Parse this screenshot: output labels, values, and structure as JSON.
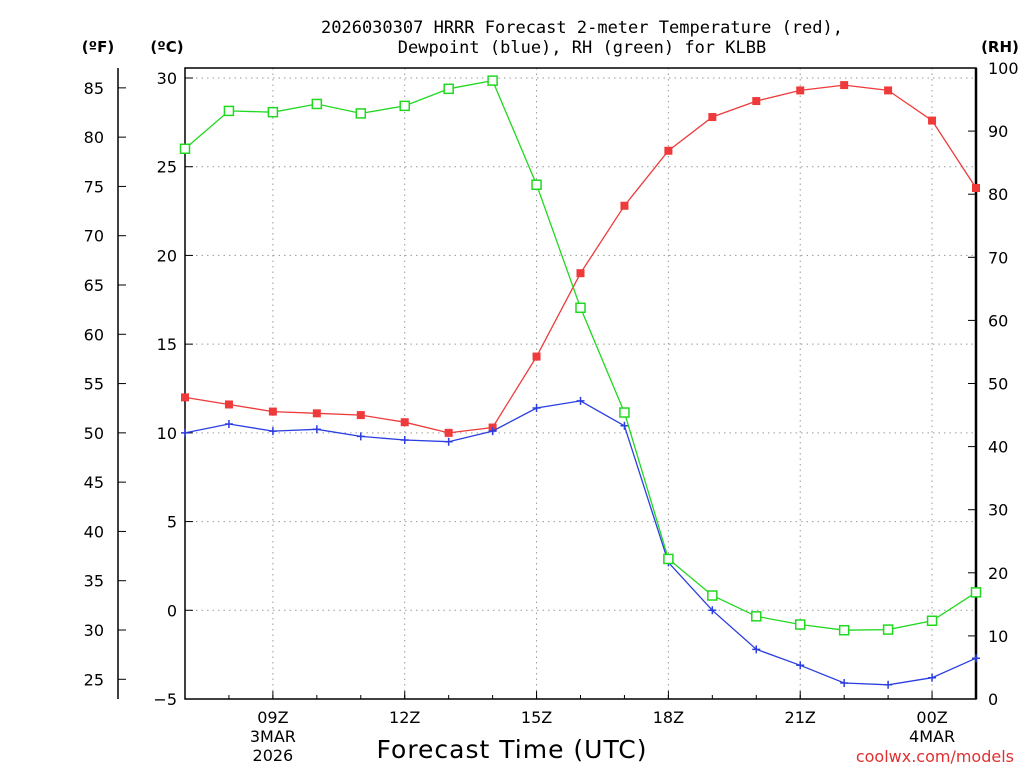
{
  "chart_data": {
    "type": "line",
    "title_line1": "2026030307 HRRR Forecast 2-meter Temperature (red),",
    "title_line2": "Dewpoint (blue), RH (green) for KLBB",
    "xlabel": "Forecast Time (UTC)",
    "credit": "coolwx.com/models",
    "colors": {
      "temperature": "#ee3a3a",
      "dewpoint": "#2b3ee0",
      "rh": "#20d820",
      "credit": "#e03030"
    },
    "axes": {
      "fahrenheit": {
        "unit_label": "(ºF)",
        "ticks": [
          "85",
          "80",
          "75",
          "70",
          "65",
          "60",
          "55",
          "50",
          "45",
          "40",
          "35",
          "30",
          "25"
        ]
      },
      "celsius": {
        "unit_label": "(ºC)",
        "ticks": [
          "30",
          "25",
          "20",
          "15",
          "10",
          "5",
          "0",
          "−5"
        ],
        "ylim": [
          -5,
          30
        ]
      },
      "rh": {
        "unit_label": "(RH)",
        "ticks": [
          "100",
          "90",
          "80",
          "70",
          "60",
          "50",
          "40",
          "30",
          "20",
          "10",
          "0"
        ],
        "ylim": [
          0,
          100
        ]
      }
    },
    "x_hours": [
      7,
      8,
      9,
      10,
      11,
      12,
      13,
      14,
      15,
      16,
      17,
      18,
      19,
      20,
      21,
      22,
      23,
      24,
      25
    ],
    "x_ticks": [
      {
        "hour": 9,
        "label": "09Z",
        "date1": "3MAR",
        "date2": "2026"
      },
      {
        "hour": 12,
        "label": "12Z",
        "date1": "",
        "date2": ""
      },
      {
        "hour": 15,
        "label": "15Z",
        "date1": "",
        "date2": ""
      },
      {
        "hour": 18,
        "label": "18Z",
        "date1": "",
        "date2": ""
      },
      {
        "hour": 21,
        "label": "21Z",
        "date1": "",
        "date2": ""
      },
      {
        "hour": 24,
        "label": "00Z",
        "date1": "4MAR",
        "date2": ""
      }
    ],
    "series": [
      {
        "name": "Temperature (°C)",
        "key": "temperature",
        "marker": "square-filled",
        "values": [
          12.0,
          11.6,
          11.2,
          11.1,
          11.0,
          10.6,
          10.0,
          10.3,
          14.3,
          19.0,
          22.8,
          25.9,
          27.8,
          28.7,
          29.3,
          29.6,
          29.3,
          27.6,
          23.8
        ]
      },
      {
        "name": "Dewpoint (°C)",
        "key": "dewpoint",
        "marker": "plus",
        "values": [
          10.0,
          10.5,
          10.1,
          10.2,
          9.8,
          9.6,
          9.5,
          10.1,
          11.4,
          11.8,
          10.4,
          2.7,
          0.0,
          -2.2,
          -3.1,
          -4.1,
          -4.2,
          -3.8,
          -2.7
        ]
      },
      {
        "name": "RH (%)",
        "key": "rh",
        "marker": "square-open",
        "values": [
          87.2,
          93.2,
          93.0,
          94.3,
          92.8,
          94.0,
          96.7,
          98.0,
          81.5,
          62.0,
          45.4,
          22.2,
          16.4,
          13.1,
          11.8,
          10.9,
          11.0,
          12.4,
          16.9
        ]
      }
    ]
  }
}
